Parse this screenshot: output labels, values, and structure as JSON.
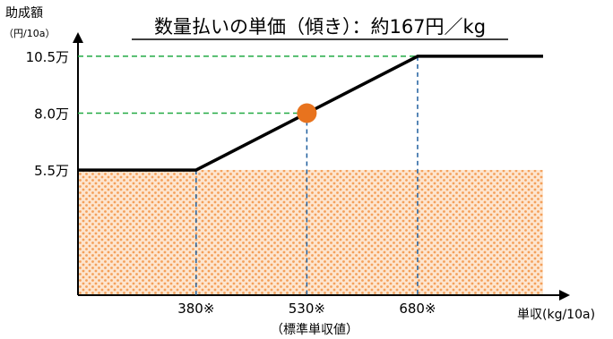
{
  "chart_data": {
    "type": "line",
    "title": "数量払いの単価（傾き）：約167円／kg",
    "ylabel": "助成額",
    "ylabel_unit": "（円/10a）",
    "xlabel": "単収(kg/10a)",
    "x_ticks": [
      {
        "value": 380,
        "label": "380※"
      },
      {
        "value": 530,
        "label": "530※"
      },
      {
        "value": 680,
        "label": "680※"
      }
    ],
    "x_tick_note": "（標準単収値）",
    "y_ticks": [
      {
        "value": 5.5,
        "label": "5.5万"
      },
      {
        "value": 8.0,
        "label": "8.0万"
      },
      {
        "value": 10.5,
        "label": "10.5万"
      }
    ],
    "xlim": [
      220,
      850
    ],
    "ylim": [
      0,
      12.5
    ],
    "series": [
      {
        "values": [
          [
            220,
            5.5
          ],
          [
            380,
            5.5
          ],
          [
            680,
            10.5
          ],
          [
            850,
            10.5
          ]
        ]
      }
    ],
    "highlight_point": {
      "x": 530,
      "y": 8.0
    },
    "base_fill_value": 5.5,
    "colors": {
      "line": "#000000",
      "marker": "#e8731e",
      "fill_dots": "#f4a05a",
      "fill_bg": "#fde5cf",
      "guide_horizontal": "#22aa44",
      "guide_vertical": "#1f5f9e"
    }
  }
}
